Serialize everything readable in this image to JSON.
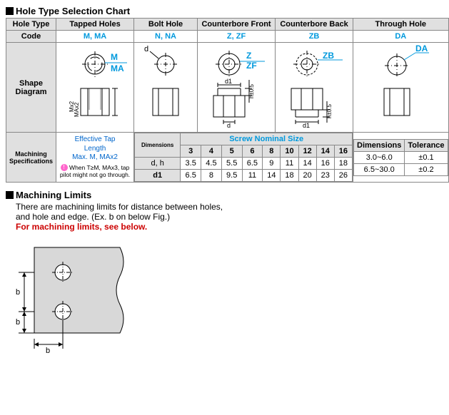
{
  "title": "Hole Type Selection Chart",
  "row_headers": {
    "hole_type": "Hole Type",
    "code": "Code",
    "shape": "Shape\nDiagram",
    "spec": "Machining\nSpecifications"
  },
  "columns": [
    {
      "name": "Tapped Holes",
      "code": "M, MA",
      "label_top": "M",
      "label_bot": "MA"
    },
    {
      "name": "Bolt Hole",
      "code": "N, NA",
      "d_label": "d"
    },
    {
      "name": "Counterbore Front",
      "code": "Z, ZF",
      "label_top": "Z",
      "label_bot": "ZF",
      "d1": "d1",
      "d": "d",
      "h": "h±0.5"
    },
    {
      "name": "Counterbore Back",
      "code": "ZB",
      "label": "ZB",
      "d1": "d1",
      "h": "h±0.5"
    },
    {
      "name": "Through Hole",
      "code": "DA",
      "label": "DA"
    }
  ],
  "eff_tap": {
    "line1": "Effective Tap",
    "line2": "Length",
    "line3": "Max. M, MAx2",
    "warn": "When T≥M, MAx3, tap pilot might not go through."
  },
  "screw_table": {
    "dim_label": "Dimensions",
    "title": "Screw Nominal Size",
    "sizes": [
      "3",
      "4",
      "5",
      "6",
      "8",
      "10",
      "12",
      "14",
      "16"
    ],
    "rows": [
      {
        "label": "d, h",
        "vals": [
          "3.5",
          "4.5",
          "5.5",
          "6.5",
          "9",
          "11",
          "14",
          "16",
          "18"
        ]
      },
      {
        "label": "d1",
        "vals": [
          "6.5",
          "8",
          "9.5",
          "11",
          "14",
          "18",
          "20",
          "23",
          "26"
        ]
      }
    ]
  },
  "tol_table": {
    "h1": "Dimensions",
    "h2": "Tolerance",
    "rows": [
      {
        "dim": "3.0~6.0",
        "tol": "±0.1"
      },
      {
        "dim": "6.5~30.0",
        "tol": "±0.2"
      }
    ]
  },
  "limits": {
    "title": "Machining Limits",
    "line1": "There are machining limits for distance between holes,",
    "line2": "and hole and edge. (Ex. b on below Fig.)",
    "line3": "For machining limits, see below."
  },
  "b_label": "b",
  "colors": {
    "blue": "#0099dd",
    "grey_bg": "#e0e0e0",
    "border": "#888888",
    "red": "#cc0000"
  }
}
